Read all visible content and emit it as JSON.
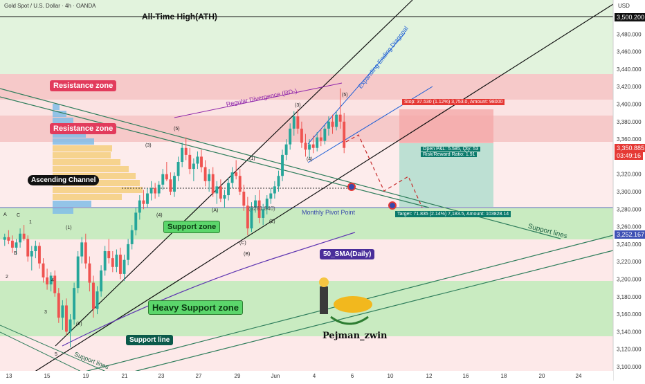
{
  "header": {
    "symbol_line": "Gold Spot / U.S. Dollar · 4h · OANDA",
    "currency": "USD"
  },
  "chart_data": {
    "type": "candlestick",
    "ylim": [
      3100,
      3520
    ],
    "y_ticks": [
      3100,
      3120,
      3140,
      3160,
      3180,
      3200,
      3220,
      3240,
      3260,
      3280,
      3300,
      3320,
      3340,
      3360,
      3380,
      3400,
      3420,
      3440,
      3460,
      3480
    ],
    "x_ticks": [
      "13",
      "15",
      "19",
      "21",
      "23",
      "27",
      "29",
      "Jun",
      "4",
      "6",
      "10",
      "12",
      "16",
      "18",
      "20",
      "24"
    ],
    "price_tags": {
      "ath": "3,500.200",
      "last": "3,350.885",
      "countdown": "03:49:16",
      "sma": "3,252.167"
    },
    "annotations": {
      "ath": "All-Time High(ATH)",
      "resistance_upper": "Resistance zone",
      "resistance_lower": "Resistance zone",
      "support_zone": "Support zone",
      "heavy_support": "Heavy Support zone",
      "ascending_channel": "Ascending Channel",
      "support_line": "Support line",
      "support_lines_right": "Support lines",
      "support_lines_left": "Support lines",
      "sma": "50_SMA(Daily)",
      "monthly_pivot": "Monthly Pivot Point",
      "pivot_value": "(3281.840)",
      "divergence": "Regular Divergence (RD-)",
      "diagonal": "Expanding Ending Diagonal",
      "stop_box": "Stop: 37.530 (1.12%) 3,753.0, Amount: 98000",
      "target_box": "Target: 71.835 (2.14%) 7,183.5, Amount: 103828.14",
      "pnl_line1": "Open P&L: 5.585, Qty: 53",
      "pnl_line2": "Risk/Reward Ratio: 1.91",
      "author": "Pejman_zwin"
    },
    "wave_labels": [
      "A",
      "B",
      "C",
      "(1)",
      "(2)",
      "(3)",
      "(4)",
      "(5)",
      "(A)",
      "(B)",
      "(C)",
      "(1)",
      "(2)",
      "(3)",
      "(4)",
      "(5)",
      "1",
      "2",
      "3",
      "4",
      "5"
    ],
    "series": [
      {
        "type": "candles",
        "ohlc": [
          [
            3245,
            3252,
            3238,
            3248
          ],
          [
            3248,
            3256,
            3240,
            3244
          ],
          [
            3244,
            3250,
            3230,
            3236
          ],
          [
            3236,
            3246,
            3228,
            3242
          ],
          [
            3242,
            3258,
            3236,
            3252
          ],
          [
            3252,
            3262,
            3244,
            3246
          ],
          [
            3246,
            3250,
            3220,
            3226
          ],
          [
            3226,
            3238,
            3210,
            3232
          ],
          [
            3232,
            3244,
            3224,
            3238
          ],
          [
            3238,
            3242,
            3212,
            3218
          ],
          [
            3218,
            3224,
            3196,
            3202
          ],
          [
            3202,
            3212,
            3188,
            3194
          ],
          [
            3194,
            3208,
            3186,
            3204
          ],
          [
            3204,
            3210,
            3180,
            3184
          ],
          [
            3184,
            3190,
            3150,
            3156
          ],
          [
            3156,
            3176,
            3142,
            3170
          ],
          [
            3170,
            3178,
            3136,
            3140
          ],
          [
            3140,
            3160,
            3122,
            3154
          ],
          [
            3154,
            3196,
            3148,
            3190
          ],
          [
            3190,
            3232,
            3184,
            3226
          ],
          [
            3226,
            3248,
            3218,
            3242
          ],
          [
            3242,
            3252,
            3212,
            3218
          ],
          [
            3218,
            3226,
            3186,
            3196
          ],
          [
            3196,
            3204,
            3156,
            3166
          ],
          [
            3166,
            3192,
            3160,
            3186
          ],
          [
            3186,
            3216,
            3180,
            3210
          ],
          [
            3210,
            3238,
            3204,
            3232
          ],
          [
            3232,
            3246,
            3218,
            3224
          ],
          [
            3224,
            3232,
            3208,
            3214
          ],
          [
            3214,
            3234,
            3208,
            3228
          ],
          [
            3228,
            3236,
            3200,
            3206
          ],
          [
            3206,
            3228,
            3198,
            3222
          ],
          [
            3222,
            3246,
            3216,
            3240
          ],
          [
            3240,
            3262,
            3234,
            3256
          ],
          [
            3256,
            3282,
            3250,
            3276
          ],
          [
            3276,
            3296,
            3268,
            3290
          ],
          [
            3290,
            3302,
            3280,
            3286
          ],
          [
            3286,
            3304,
            3282,
            3298
          ],
          [
            3298,
            3312,
            3290,
            3304
          ],
          [
            3304,
            3310,
            3292,
            3298
          ],
          [
            3298,
            3312,
            3294,
            3308
          ],
          [
            3308,
            3326,
            3302,
            3320
          ],
          [
            3320,
            3334,
            3312,
            3314
          ],
          [
            3314,
            3322,
            3296,
            3300
          ],
          [
            3300,
            3322,
            3294,
            3318
          ],
          [
            3318,
            3340,
            3312,
            3334
          ],
          [
            3334,
            3356,
            3328,
            3350
          ],
          [
            3350,
            3362,
            3336,
            3342
          ],
          [
            3342,
            3350,
            3320,
            3326
          ],
          [
            3326,
            3338,
            3312,
            3332
          ],
          [
            3332,
            3346,
            3326,
            3340
          ],
          [
            3340,
            3348,
            3322,
            3328
          ],
          [
            3328,
            3336,
            3306,
            3312
          ],
          [
            3312,
            3326,
            3300,
            3320
          ],
          [
            3320,
            3328,
            3294,
            3298
          ],
          [
            3298,
            3312,
            3286,
            3306
          ],
          [
            3306,
            3314,
            3288,
            3292
          ],
          [
            3292,
            3302,
            3282,
            3296
          ],
          [
            3296,
            3316,
            3290,
            3310
          ],
          [
            3310,
            3328,
            3304,
            3322
          ],
          [
            3322,
            3336,
            3314,
            3318
          ],
          [
            3318,
            3326,
            3296,
            3300
          ],
          [
            3300,
            3308,
            3278,
            3284
          ],
          [
            3284,
            3294,
            3250,
            3258
          ],
          [
            3258,
            3288,
            3254,
            3282
          ],
          [
            3282,
            3296,
            3276,
            3290
          ],
          [
            3290,
            3302,
            3264,
            3270
          ],
          [
            3270,
            3286,
            3262,
            3280
          ],
          [
            3280,
            3296,
            3274,
            3292
          ],
          [
            3292,
            3304,
            3286,
            3298
          ],
          [
            3298,
            3312,
            3292,
            3306
          ],
          [
            3306,
            3324,
            3300,
            3318
          ],
          [
            3318,
            3348,
            3312,
            3342
          ],
          [
            3342,
            3360,
            3336,
            3354
          ],
          [
            3354,
            3378,
            3348,
            3372
          ],
          [
            3372,
            3392,
            3364,
            3386
          ],
          [
            3386,
            3394,
            3366,
            3372
          ],
          [
            3372,
            3380,
            3350,
            3356
          ],
          [
            3356,
            3366,
            3340,
            3348
          ],
          [
            3348,
            3360,
            3338,
            3354
          ],
          [
            3354,
            3364,
            3344,
            3350
          ],
          [
            3350,
            3368,
            3346,
            3362
          ],
          [
            3362,
            3372,
            3352,
            3358
          ],
          [
            3358,
            3376,
            3354,
            3372
          ],
          [
            3372,
            3386,
            3364,
            3380
          ],
          [
            3380,
            3388,
            3366,
            3374
          ],
          [
            3374,
            3392,
            3370,
            3388
          ],
          [
            3388,
            3418,
            3372,
            3380
          ],
          [
            3380,
            3390,
            3344,
            3350
          ]
        ]
      }
    ]
  }
}
